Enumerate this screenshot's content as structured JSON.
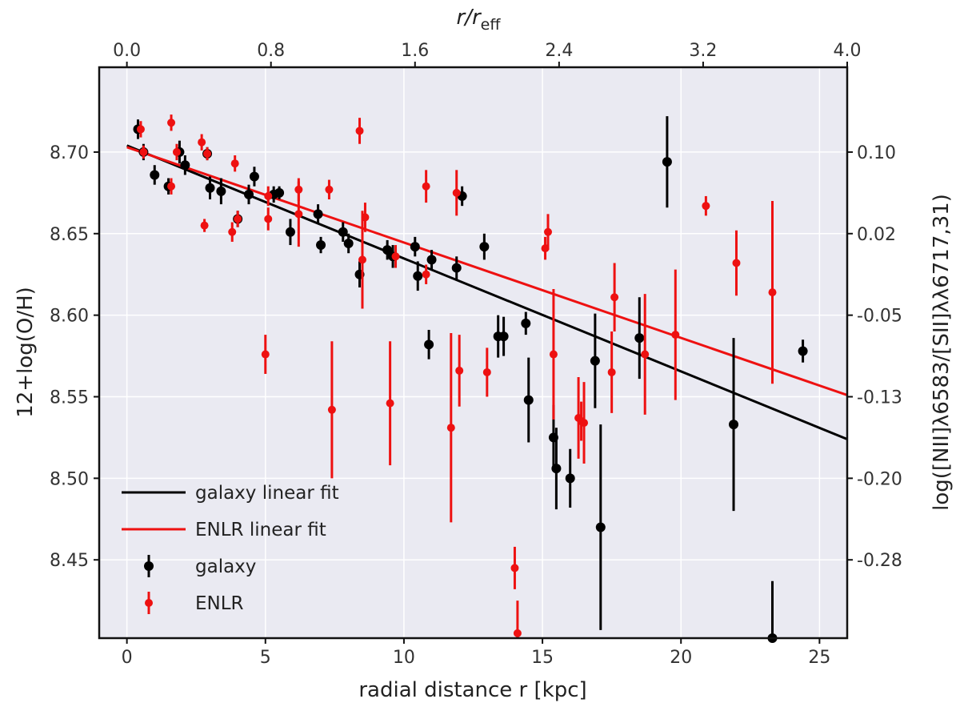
{
  "chart_data": {
    "type": "scatter",
    "xlabel": "radial distance r [kpc]",
    "ylabel": "12+log(O/H)",
    "top_xlabel": "r/r_eff",
    "right_ylabel": "log([NII]λ6583/[SII]λλ6717,31)",
    "xlim": [
      -1.0,
      26.0
    ],
    "ylim": [
      8.402,
      8.752
    ],
    "top_xlim": [
      -0.1538,
      4.0
    ],
    "x_ticks": [
      0,
      5,
      10,
      15,
      20,
      25
    ],
    "x_tick_labels": [
      "0",
      "5",
      "10",
      "15",
      "20",
      "25"
    ],
    "y_ticks": [
      8.45,
      8.5,
      8.55,
      8.6,
      8.65,
      8.7
    ],
    "y_tick_labels": [
      "8.45",
      "8.50",
      "8.55",
      "8.60",
      "8.65",
      "8.70"
    ],
    "top_ticks": [
      0.0,
      0.8,
      1.6,
      2.4,
      3.2,
      4.0
    ],
    "top_tick_labels": [
      "0.0",
      "0.8",
      "1.6",
      "2.4",
      "3.2",
      "4.0"
    ],
    "right_ticks": [
      8.45,
      8.5,
      8.55,
      8.6,
      8.65,
      8.7
    ],
    "right_tick_labels": [
      "-0.28",
      "-0.20",
      "-0.13",
      "-0.05",
      "0.02",
      "0.10"
    ],
    "grid": true,
    "legend_position": "bottom-left",
    "colors": {
      "galaxy": "#000000",
      "enlr": "#ee1111",
      "background": "#eaeaf2",
      "grid": "#ffffff"
    },
    "fits": [
      {
        "name": "galaxy linear fit",
        "color": "#000000",
        "x": [
          0,
          26
        ],
        "y": [
          8.704,
          8.524
        ]
      },
      {
        "name": "ENLR linear fit",
        "color": "#ee1111",
        "x": [
          0,
          26
        ],
        "y": [
          8.703,
          8.551
        ]
      }
    ],
    "series": [
      {
        "name": "galaxy",
        "color": "#000000",
        "points": [
          [
            0.4,
            8.714,
            0.006
          ],
          [
            0.6,
            8.7,
            0.005
          ],
          [
            1.0,
            8.686,
            0.006
          ],
          [
            1.5,
            8.679,
            0.005
          ],
          [
            1.9,
            8.7,
            0.007
          ],
          [
            2.1,
            8.692,
            0.006
          ],
          [
            2.9,
            8.699,
            0.004
          ],
          [
            3.0,
            8.678,
            0.007
          ],
          [
            3.4,
            8.676,
            0.008
          ],
          [
            4.0,
            8.659,
            0.005
          ],
          [
            4.4,
            8.674,
            0.006
          ],
          [
            4.6,
            8.685,
            0.006
          ],
          [
            5.3,
            8.674,
            0.005
          ],
          [
            5.5,
            8.675,
            0.004
          ],
          [
            5.9,
            8.651,
            0.008
          ],
          [
            6.9,
            8.662,
            0.006
          ],
          [
            7.0,
            8.643,
            0.005
          ],
          [
            7.8,
            8.651,
            0.006
          ],
          [
            8.0,
            8.644,
            0.006
          ],
          [
            8.4,
            8.625,
            0.008
          ],
          [
            9.4,
            8.64,
            0.006
          ],
          [
            9.6,
            8.636,
            0.007
          ],
          [
            10.4,
            8.642,
            0.006
          ],
          [
            10.5,
            8.624,
            0.009
          ],
          [
            10.9,
            8.582,
            0.009
          ],
          [
            11.0,
            8.634,
            0.006
          ],
          [
            11.9,
            8.629,
            0.007
          ],
          [
            12.1,
            8.673,
            0.006
          ],
          [
            12.9,
            8.642,
            0.008
          ],
          [
            13.4,
            8.587,
            0.013
          ],
          [
            13.6,
            8.587,
            0.012
          ],
          [
            14.4,
            8.595,
            0.007
          ],
          [
            14.5,
            8.548,
            0.026
          ],
          [
            15.4,
            8.525,
            0.02
          ],
          [
            15.5,
            8.506,
            0.025
          ],
          [
            16.0,
            8.5,
            0.018
          ],
          [
            16.9,
            8.572,
            0.029
          ],
          [
            17.1,
            8.47,
            0.063
          ],
          [
            18.5,
            8.586,
            0.025
          ],
          [
            19.5,
            8.694,
            0.028
          ],
          [
            21.9,
            8.533,
            0.053
          ],
          [
            23.3,
            8.402,
            0.035
          ],
          [
            24.4,
            8.578,
            0.007
          ]
        ]
      },
      {
        "name": "ENLR",
        "color": "#ee1111",
        "points": [
          [
            0.5,
            8.714,
            0.005
          ],
          [
            0.6,
            8.7,
            0.004
          ],
          [
            1.6,
            8.679,
            0.005
          ],
          [
            1.6,
            8.718,
            0.005
          ],
          [
            1.8,
            8.7,
            0.005
          ],
          [
            2.7,
            8.706,
            0.005
          ],
          [
            2.8,
            8.655,
            0.004
          ],
          [
            2.9,
            8.699,
            0.004
          ],
          [
            3.8,
            8.651,
            0.006
          ],
          [
            3.9,
            8.693,
            0.005
          ],
          [
            4.0,
            8.659,
            0.005
          ],
          [
            5.0,
            8.576,
            0.012
          ],
          [
            5.1,
            8.673,
            0.006
          ],
          [
            5.1,
            8.659,
            0.007
          ],
          [
            6.2,
            8.677,
            0.007
          ],
          [
            6.2,
            8.662,
            0.02
          ],
          [
            7.3,
            8.677,
            0.006
          ],
          [
            7.4,
            8.542,
            0.042
          ],
          [
            8.4,
            8.713,
            0.008
          ],
          [
            8.5,
            8.634,
            0.03
          ],
          [
            8.6,
            8.66,
            0.009
          ],
          [
            9.5,
            8.546,
            0.038
          ],
          [
            9.7,
            8.636,
            0.007
          ],
          [
            10.8,
            8.625,
            0.006
          ],
          [
            10.8,
            8.679,
            0.01
          ],
          [
            11.7,
            8.531,
            0.058
          ],
          [
            11.9,
            8.675,
            0.014
          ],
          [
            12.0,
            8.566,
            0.022
          ],
          [
            13.0,
            8.565,
            0.015
          ],
          [
            14.0,
            8.445,
            0.013
          ],
          [
            14.1,
            8.405,
            0.02
          ],
          [
            15.1,
            8.641,
            0.007
          ],
          [
            15.2,
            8.651,
            0.011
          ],
          [
            15.4,
            8.576,
            0.04
          ],
          [
            16.3,
            8.537,
            0.025
          ],
          [
            16.4,
            8.535,
            0.012
          ],
          [
            16.5,
            8.534,
            0.025
          ],
          [
            17.5,
            8.565,
            0.025
          ],
          [
            17.6,
            8.611,
            0.021
          ],
          [
            18.7,
            8.576,
            0.037
          ],
          [
            19.8,
            8.588,
            0.04
          ],
          [
            20.9,
            8.667,
            0.006
          ],
          [
            22.0,
            8.632,
            0.02
          ],
          [
            23.3,
            8.614,
            0.056
          ]
        ]
      }
    ],
    "legend": {
      "entries": [
        {
          "label": "galaxy linear fit",
          "kind": "line",
          "color": "#000000"
        },
        {
          "label": "ENLR linear fit",
          "kind": "line",
          "color": "#ee1111"
        },
        {
          "label": "galaxy",
          "kind": "marker",
          "color": "#000000"
        },
        {
          "label": "ENLR",
          "kind": "marker",
          "color": "#ee1111"
        }
      ]
    }
  }
}
